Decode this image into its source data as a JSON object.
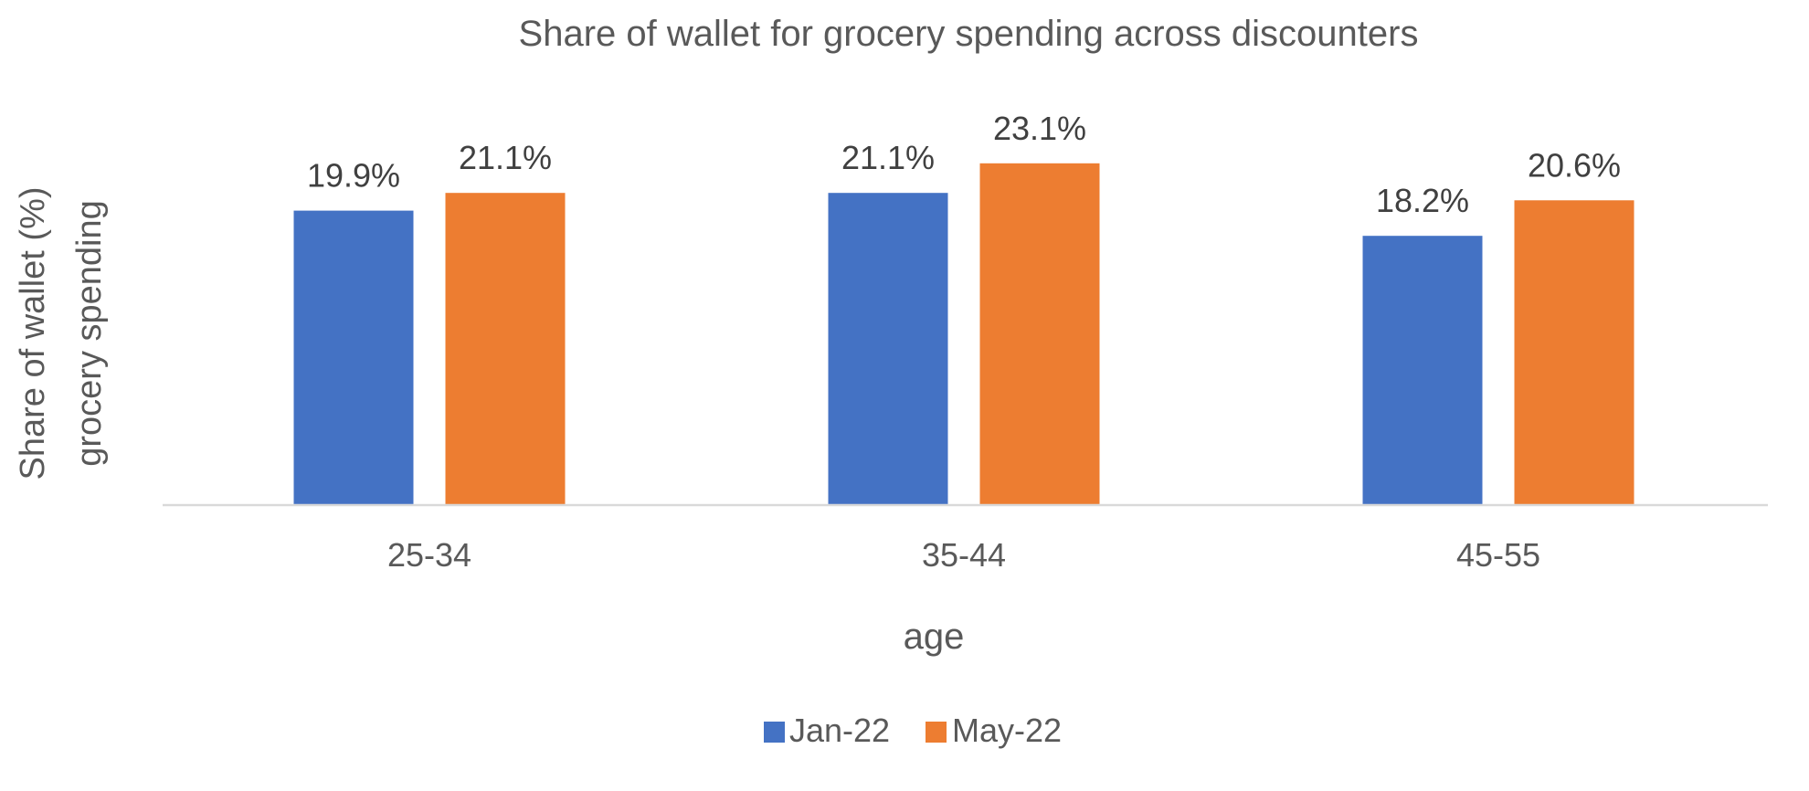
{
  "chart_data": {
    "type": "bar",
    "title": "Share of wallet for grocery spending across discounters",
    "xlabel": "age",
    "ylabel_lines": [
      "Share of wallet (%)",
      "grocery spending"
    ],
    "categories": [
      "25-34",
      "35-44",
      "45-55"
    ],
    "series": [
      {
        "name": "Jan-22",
        "color": "#4472C4",
        "values": [
          19.9,
          21.1,
          18.2
        ],
        "labels": [
          "19.9%",
          "21.1%",
          "18.2%"
        ]
      },
      {
        "name": "May-22",
        "color": "#ED7D31",
        "values": [
          21.1,
          23.1,
          20.6
        ],
        "labels": [
          "21.1%",
          "23.1%",
          "20.6%"
        ]
      }
    ],
    "ylim": [
      0,
      25
    ],
    "grid": false,
    "legend_position": "bottom"
  },
  "colors": {
    "text": "#595959",
    "data_label": "#404040",
    "axis_line": "#D9D9D9",
    "background": "#FFFFFF"
  }
}
